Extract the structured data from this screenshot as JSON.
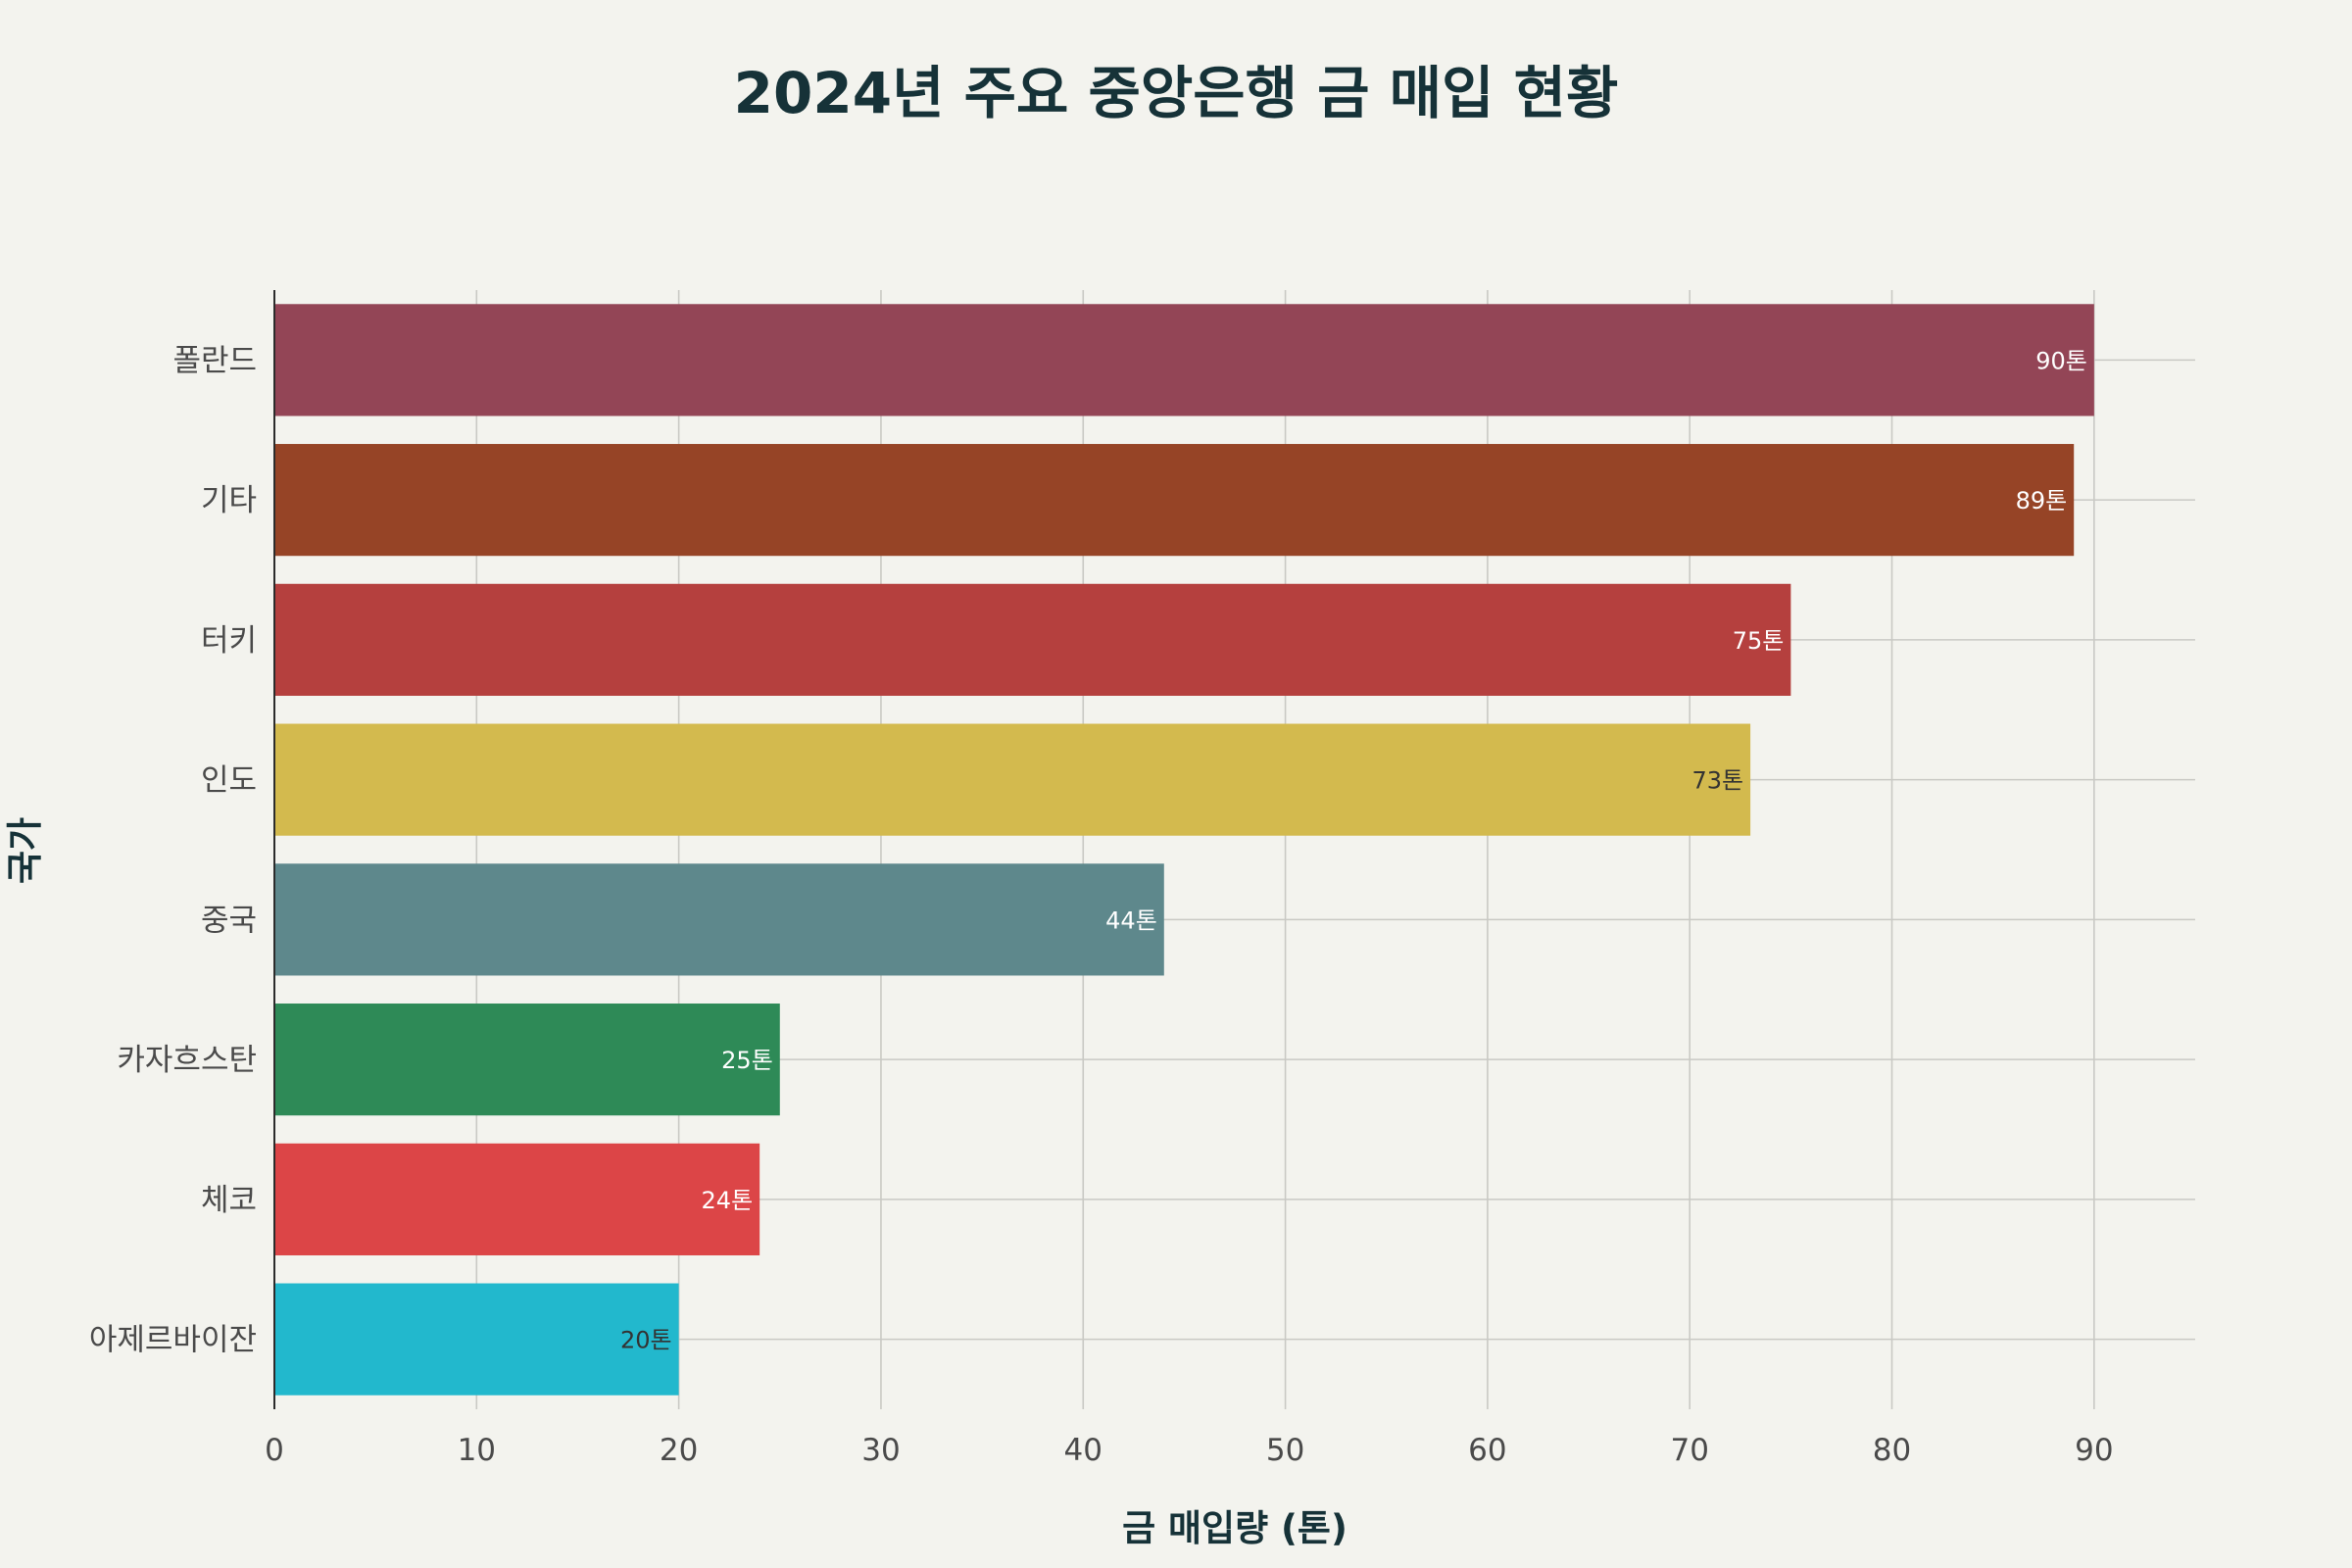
{
  "chart_data": {
    "type": "bar",
    "orientation": "horizontal",
    "title": "2024년 주요 중앙은행 금 매입 현황",
    "xlabel": "금 매입량 (톤)",
    "ylabel": "국가",
    "xlim": [
      0,
      95
    ],
    "xticks": [
      0,
      10,
      20,
      30,
      40,
      50,
      60,
      70,
      80,
      90
    ],
    "grid": true,
    "categories": [
      "폴란드",
      "기타",
      "터키",
      "인도",
      "중국",
      "카자흐스탄",
      "체코",
      "아제르바이잔"
    ],
    "values": [
      90,
      89,
      75,
      73,
      44,
      25,
      24,
      20
    ],
    "data_labels": [
      "90톤",
      "89톤",
      "75톤",
      "73톤",
      "44톤",
      "25톤",
      "24톤",
      "20톤"
    ],
    "colors": [
      "#934556",
      "#964426",
      "#b5403e",
      "#d3ba4e",
      "#5e888c",
      "#2e8a57",
      "#dc4547",
      "#22b8cd"
    ],
    "label_colors": [
      "#ffffff",
      "#ffffff",
      "#ffffff",
      "#333333",
      "#ffffff",
      "#ffffff",
      "#ffffff",
      "#333333"
    ]
  }
}
